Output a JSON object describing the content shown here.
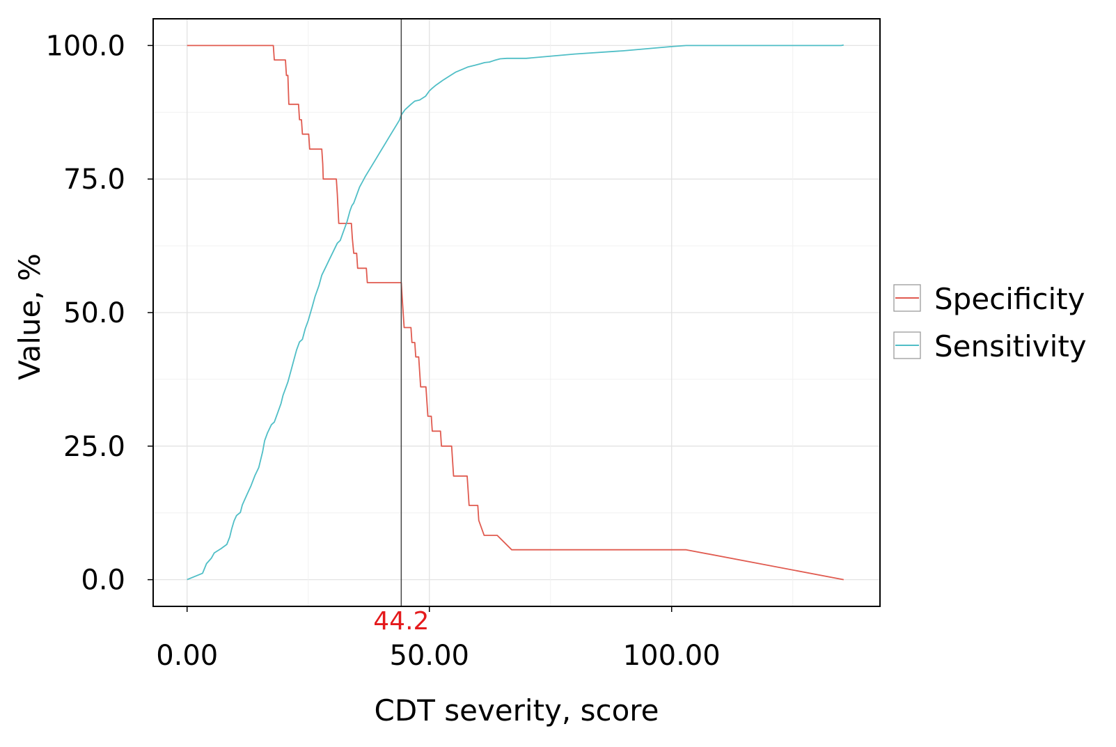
{
  "chart_data": {
    "type": "line",
    "xlabel": "CDT severity, score",
    "ylabel": "Value, %",
    "xlim": [
      -7,
      143
    ],
    "ylim": [
      -5,
      105
    ],
    "x_ticks": [
      0,
      50,
      100
    ],
    "x_tick_labels": [
      "0.00",
      "50.00",
      "100.00"
    ],
    "y_ticks": [
      0,
      25,
      50,
      75,
      100
    ],
    "y_tick_labels": [
      "0.0",
      "25.0",
      "50.0",
      "75.0",
      "100.0"
    ],
    "grid": true,
    "legend_position": "right",
    "cutoff": {
      "x": 44.2,
      "label": "44.2",
      "color": "#e41a1c"
    },
    "series": [
      {
        "name": "Specificity",
        "color": "#e05a4f",
        "points": [
          [
            0,
            100
          ],
          [
            17.8,
            100
          ],
          [
            18.0,
            97.3
          ],
          [
            20.3,
            97.3
          ],
          [
            20.5,
            94.4
          ],
          [
            20.8,
            94.4
          ],
          [
            21.0,
            89.0
          ],
          [
            23.0,
            89.0
          ],
          [
            23.2,
            86.1
          ],
          [
            23.6,
            86.1
          ],
          [
            23.8,
            83.4
          ],
          [
            25.1,
            83.4
          ],
          [
            25.3,
            80.6
          ],
          [
            27.8,
            80.6
          ],
          [
            28.0,
            77.8
          ],
          [
            28.1,
            75.0
          ],
          [
            30.8,
            75.0
          ],
          [
            31.0,
            72.2
          ],
          [
            31.3,
            66.7
          ],
          [
            33.9,
            66.7
          ],
          [
            34.1,
            63.9
          ],
          [
            34.4,
            61.1
          ],
          [
            35.0,
            61.1
          ],
          [
            35.2,
            58.3
          ],
          [
            37.0,
            58.3
          ],
          [
            37.2,
            55.6
          ],
          [
            44.2,
            55.6
          ],
          [
            44.4,
            52.8
          ],
          [
            44.6,
            50.0
          ],
          [
            44.8,
            47.2
          ],
          [
            46.2,
            47.2
          ],
          [
            46.4,
            44.4
          ],
          [
            47.0,
            44.4
          ],
          [
            47.2,
            41.7
          ],
          [
            47.8,
            41.7
          ],
          [
            48.0,
            38.9
          ],
          [
            48.2,
            36.1
          ],
          [
            49.3,
            36.1
          ],
          [
            49.5,
            33.3
          ],
          [
            49.7,
            30.6
          ],
          [
            50.4,
            30.6
          ],
          [
            50.6,
            27.8
          ],
          [
            52.3,
            27.8
          ],
          [
            52.5,
            25.0
          ],
          [
            54.6,
            25.0
          ],
          [
            54.8,
            22.2
          ],
          [
            55.0,
            19.4
          ],
          [
            57.8,
            19.4
          ],
          [
            58.0,
            16.7
          ],
          [
            58.2,
            13.9
          ],
          [
            60.0,
            13.9
          ],
          [
            60.2,
            11.1
          ],
          [
            61.3,
            8.3
          ],
          [
            64.0,
            8.3
          ],
          [
            67.0,
            5.6
          ],
          [
            103.0,
            5.6
          ],
          [
            135.5,
            0
          ]
        ]
      },
      {
        "name": "Sensitivity",
        "color": "#4fbec6",
        "points": [
          [
            0,
            0
          ],
          [
            3.2,
            1.2
          ],
          [
            4.0,
            3.0
          ],
          [
            5.0,
            4.0
          ],
          [
            5.6,
            5.0
          ],
          [
            7.0,
            5.8
          ],
          [
            8.2,
            6.6
          ],
          [
            8.8,
            8.0
          ],
          [
            9.2,
            9.5
          ],
          [
            9.7,
            11.0
          ],
          [
            10.2,
            12.0
          ],
          [
            11.0,
            12.6
          ],
          [
            11.4,
            14.0
          ],
          [
            12.3,
            15.8
          ],
          [
            13.2,
            17.6
          ],
          [
            14.0,
            19.5
          ],
          [
            14.8,
            21.0
          ],
          [
            15.2,
            22.5
          ],
          [
            15.6,
            24.0
          ],
          [
            16.0,
            26.0
          ],
          [
            16.6,
            27.5
          ],
          [
            17.4,
            29.0
          ],
          [
            18.0,
            29.5
          ],
          [
            18.6,
            31.0
          ],
          [
            19.4,
            33.0
          ],
          [
            19.8,
            34.5
          ],
          [
            20.4,
            36.0
          ],
          [
            20.8,
            37.0
          ],
          [
            21.4,
            39.0
          ],
          [
            22.0,
            41.0
          ],
          [
            22.6,
            43.0
          ],
          [
            23.2,
            44.5
          ],
          [
            23.8,
            45.0
          ],
          [
            24.4,
            47.0
          ],
          [
            25.0,
            48.5
          ],
          [
            25.8,
            51.0
          ],
          [
            26.4,
            53.0
          ],
          [
            27.2,
            55.0
          ],
          [
            27.8,
            57.0
          ],
          [
            28.6,
            58.5
          ],
          [
            29.4,
            60.0
          ],
          [
            30.2,
            61.5
          ],
          [
            31.0,
            63.0
          ],
          [
            31.6,
            63.5
          ],
          [
            32.2,
            65.0
          ],
          [
            33.0,
            67.0
          ],
          [
            33.6,
            69.0
          ],
          [
            34.0,
            70.0
          ],
          [
            34.4,
            70.5
          ],
          [
            35.0,
            72.0
          ],
          [
            35.6,
            73.5
          ],
          [
            36.2,
            74.5
          ],
          [
            36.8,
            75.5
          ],
          [
            37.8,
            77.0
          ],
          [
            38.8,
            78.5
          ],
          [
            39.8,
            80.0
          ],
          [
            40.8,
            81.5
          ],
          [
            41.8,
            83.0
          ],
          [
            42.8,
            84.5
          ],
          [
            43.8,
            86.0
          ],
          [
            44.2,
            87.0
          ],
          [
            45.0,
            88.0
          ],
          [
            46.2,
            89.0
          ],
          [
            47.0,
            89.6
          ],
          [
            48.0,
            89.8
          ],
          [
            49.2,
            90.5
          ],
          [
            50.0,
            91.5
          ],
          [
            50.6,
            92.0
          ],
          [
            51.4,
            92.6
          ],
          [
            52.8,
            93.5
          ],
          [
            54.0,
            94.2
          ],
          [
            55.4,
            95.0
          ],
          [
            57.0,
            95.6
          ],
          [
            58.0,
            96.0
          ],
          [
            59.4,
            96.3
          ],
          [
            60.6,
            96.6
          ],
          [
            61.4,
            96.8
          ],
          [
            62.4,
            96.9
          ],
          [
            63.4,
            97.2
          ],
          [
            64.6,
            97.5
          ],
          [
            66.0,
            97.6
          ],
          [
            70.0,
            97.6
          ],
          [
            80.0,
            98.4
          ],
          [
            90.0,
            99.0
          ],
          [
            100.0,
            99.8
          ],
          [
            103.0,
            100.0
          ],
          [
            135.0,
            100.0
          ],
          [
            135.5,
            100.1
          ]
        ]
      }
    ]
  }
}
